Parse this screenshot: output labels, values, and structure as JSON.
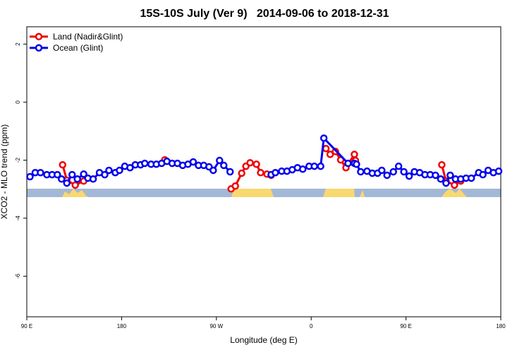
{
  "chart_data": {
    "type": "line",
    "title": "15S-10S July (Ver 9)   2014-09-06 to 2018-12-31",
    "x_label": "Longitude (deg E)",
    "y_label": "XCO2 - MLO trend (ppm)",
    "xlim": [
      90,
      540
    ],
    "xticks": [
      {
        "value": 90,
        "label": "90 E"
      },
      {
        "value": 180,
        "label": "180"
      },
      {
        "value": 270,
        "label": "90 W"
      },
      {
        "value": 360,
        "label": "0"
      },
      {
        "value": 450,
        "label": "90 E"
      },
      {
        "value": 540,
        "label": "180"
      }
    ],
    "ylim": [
      -7.4,
      2.6
    ],
    "yticks": [
      -6,
      -4,
      -2,
      0,
      2
    ],
    "legend": "top-left",
    "series": [
      {
        "name": "Land (Nadir&Glint)",
        "color": "#ee0000",
        "x": [
          124,
          128,
          136,
          144,
          200,
          221,
          250,
          284,
          288,
          294,
          298,
          302,
          308,
          312,
          318,
          322,
          340,
          374,
          378,
          383,
          388,
          393,
          401,
          402,
          450,
          484,
          488,
          496,
          502
        ],
        "values": [
          -2.16,
          -2.69,
          -2.86,
          -2.72,
          null,
          -1.99,
          null,
          -2.99,
          -2.89,
          -2.45,
          -2.21,
          -2.09,
          -2.14,
          -2.43,
          -2.48,
          -2.52,
          null,
          -1.6,
          -1.8,
          -1.7,
          -1.99,
          -2.26,
          -1.8,
          -2.01,
          null,
          -2.16,
          -2.72,
          -2.86,
          -2.72
        ]
      },
      {
        "name": "Ocean (Glint)",
        "color": "#0000ee",
        "x": [
          93,
          98,
          103,
          109,
          114,
          119,
          123,
          128,
          133,
          138,
          144,
          148,
          153,
          159,
          164,
          168,
          174,
          178,
          183,
          188,
          193,
          198,
          202,
          208,
          213,
          218,
          223,
          228,
          233,
          238,
          243,
          248,
          253,
          258,
          263,
          267,
          273,
          277,
          283,
          300,
          322,
          326,
          332,
          337,
          342,
          347,
          352,
          358,
          363,
          369,
          372,
          395,
          401,
          403,
          407,
          413,
          418,
          423,
          427,
          432,
          438,
          443,
          448,
          453,
          458,
          463,
          468,
          473,
          478,
          483,
          488,
          492,
          497,
          502,
          507,
          512,
          519,
          523,
          528,
          533,
          538
        ],
        "values": [
          -2.57,
          -2.43,
          -2.43,
          -2.5,
          -2.5,
          -2.5,
          -2.65,
          -2.79,
          -2.5,
          -2.65,
          -2.48,
          -2.62,
          -2.65,
          -2.43,
          -2.5,
          -2.35,
          -2.43,
          -2.35,
          -2.21,
          -2.26,
          -2.16,
          -2.16,
          -2.11,
          -2.14,
          -2.14,
          -2.11,
          -2.04,
          -2.11,
          -2.11,
          -2.18,
          -2.14,
          -2.06,
          -2.18,
          -2.18,
          -2.23,
          -2.35,
          -2.01,
          -2.18,
          -2.4,
          null,
          -2.5,
          -2.43,
          -2.38,
          -2.38,
          -2.33,
          -2.26,
          -2.31,
          -2.21,
          -2.21,
          -2.21,
          -1.24,
          -2.11,
          -2.11,
          -2.14,
          -2.4,
          -2.38,
          -2.45,
          -2.45,
          -2.35,
          -2.52,
          -2.4,
          -2.21,
          -2.4,
          -2.55,
          -2.4,
          -2.43,
          -2.5,
          -2.5,
          -2.52,
          -2.65,
          -2.79,
          -2.52,
          -2.65,
          -2.65,
          -2.62,
          -2.62,
          -2.43,
          -2.5,
          -2.35,
          -2.43,
          -2.38
        ]
      }
    ]
  }
}
